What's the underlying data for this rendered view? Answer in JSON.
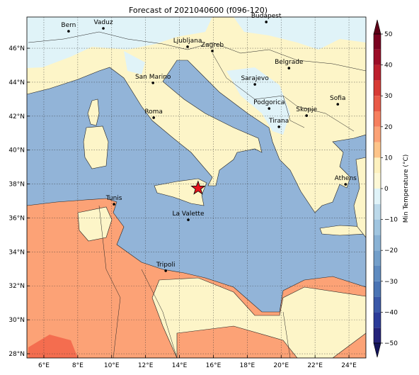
{
  "map": {
    "title": "Forecast of 2021040600 (f096-120)",
    "lonlim": [
      5,
      25
    ],
    "latlim": [
      27.75,
      47.84
    ],
    "grid": true,
    "lon_ticks": [
      {
        "value": 6,
        "label": "6°E"
      },
      {
        "value": 8,
        "label": "8°E"
      },
      {
        "value": 10,
        "label": "10°E"
      },
      {
        "value": 12,
        "label": "12°E"
      },
      {
        "value": 14,
        "label": "14°E"
      },
      {
        "value": 16,
        "label": "16°E"
      },
      {
        "value": 18,
        "label": "18°E"
      },
      {
        "value": 20,
        "label": "20°E"
      },
      {
        "value": 22,
        "label": "22°E"
      },
      {
        "value": 24,
        "label": "24°E"
      }
    ],
    "lat_ticks": [
      {
        "value": 28,
        "label": "28°N"
      },
      {
        "value": 30,
        "label": "30°N"
      },
      {
        "value": 32,
        "label": "32°N"
      },
      {
        "value": 34,
        "label": "34°N"
      },
      {
        "value": 36,
        "label": "36°N"
      },
      {
        "value": 38,
        "label": "38°N"
      },
      {
        "value": 40,
        "label": "40°N"
      },
      {
        "value": 42,
        "label": "42°N"
      },
      {
        "value": 44,
        "label": "44°N"
      },
      {
        "value": 46,
        "label": "46°N"
      }
    ],
    "cities": [
      {
        "name": "Bern",
        "lon": 7.46,
        "lat": 47.0
      },
      {
        "name": "Vaduz",
        "lon": 9.51,
        "lat": 47.17
      },
      {
        "name": "Budapest",
        "lon": 19.12,
        "lat": 47.55
      },
      {
        "name": "Ljubljana",
        "lon": 14.48,
        "lat": 46.09
      },
      {
        "name": "Zagreb",
        "lon": 15.94,
        "lat": 45.84
      },
      {
        "name": "Belgrade",
        "lon": 20.46,
        "lat": 44.83
      },
      {
        "name": "San Marino",
        "lon": 12.44,
        "lat": 43.96
      },
      {
        "name": "Sarajevo",
        "lon": 18.45,
        "lat": 43.87
      },
      {
        "name": "Sofia",
        "lon": 23.34,
        "lat": 42.7
      },
      {
        "name": "Podgorica",
        "lon": 19.29,
        "lat": 42.45
      },
      {
        "name": "Skopje",
        "lon": 21.5,
        "lat": 42.03
      },
      {
        "name": "Roma",
        "lon": 12.48,
        "lat": 41.91
      },
      {
        "name": "Tirana",
        "lon": 19.87,
        "lat": 41.37
      },
      {
        "name": "Athens",
        "lon": 23.8,
        "lat": 37.98
      },
      {
        "name": "Tunis",
        "lon": 10.14,
        "lat": 36.81
      },
      {
        "name": "La Valette",
        "lon": 14.52,
        "lat": 35.89
      },
      {
        "name": "Tripoli",
        "lon": 13.19,
        "lat": 32.89
      }
    ],
    "marker": {
      "lon": 15.1,
      "lat": 37.75,
      "color": "#e8141c"
    },
    "colorbar": {
      "label": "Min Temperature (°C)",
      "levels": [
        -50,
        -45,
        -40,
        -35,
        -30,
        -25,
        -20,
        -15,
        -10,
        -5,
        0,
        5,
        10,
        15,
        20,
        25,
        30,
        35,
        40,
        45,
        50
      ],
      "colors": [
        "#24237a",
        "#2b3b99",
        "#3a58a8",
        "#4a74b4",
        "#5e8bc0",
        "#739fca",
        "#89b2d5",
        "#a0c5e0",
        "#bcd9ea",
        "#e0f3f8",
        "#fdf8d6",
        "#fdf1bf",
        "#fdc48a",
        "#fca276",
        "#f67f5e",
        "#e95a47",
        "#d73a34",
        "#bd1f2c",
        "#9c0d26",
        "#7a0220"
      ],
      "extend_colors": [
        "#14145a",
        "#5e0017"
      ],
      "ticks": [
        {
          "value": -50,
          "label": "−50"
        },
        {
          "value": -40,
          "label": "−40"
        },
        {
          "value": -30,
          "label": "−30"
        },
        {
          "value": -20,
          "label": "−20"
        },
        {
          "value": -10,
          "label": "−10"
        },
        0,
        10,
        20,
        30,
        40,
        50
      ]
    }
  }
}
